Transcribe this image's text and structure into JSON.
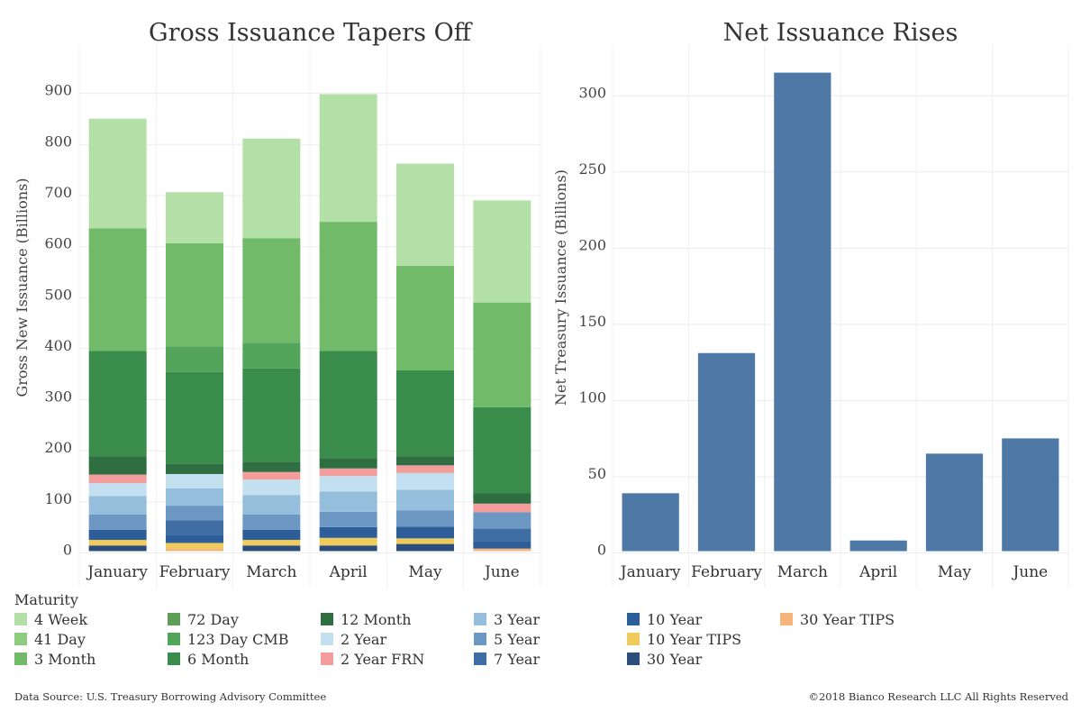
{
  "chart_data": [
    {
      "type": "bar",
      "stacked": true,
      "title": "Gross Issuance Tapers Off",
      "ylabel": "Gross New Issuance (Billions)",
      "xlabel": "",
      "categories": [
        "January",
        "February",
        "March",
        "April",
        "May",
        "June"
      ],
      "ylim": [
        -15,
        970
      ],
      "yticks": [
        0,
        100,
        200,
        300,
        400,
        500,
        600,
        700,
        800,
        900
      ],
      "grid": true,
      "series": [
        {
          "name": "30 Year TIPS",
          "color": "#f5b57a",
          "values": [
            0,
            5,
            0,
            0,
            0,
            5
          ]
        },
        {
          "name": "30 Year",
          "color": "#2c4e7c",
          "values": [
            11,
            0,
            11,
            11,
            14,
            0
          ]
        },
        {
          "name": "10 Year TIPS",
          "color": "#eecb5a",
          "values": [
            11,
            11,
            11,
            15,
            11,
            0
          ]
        },
        {
          "name": "10 Year",
          "color": "#2e5e99",
          "values": [
            20,
            15,
            20,
            21,
            23,
            15
          ]
        },
        {
          "name": "7 Year",
          "color": "#3f6ea5",
          "values": [
            0,
            29,
            0,
            0,
            0,
            24
          ]
        },
        {
          "name": "5 Year",
          "color": "#6e98c4",
          "values": [
            30,
            29,
            30,
            30,
            32,
            32
          ]
        },
        {
          "name": "3 Year",
          "color": "#95bedc",
          "values": [
            36,
            34,
            38,
            40,
            40,
            0
          ]
        },
        {
          "name": "2 Year",
          "color": "#c3e0f1",
          "values": [
            25,
            28,
            30,
            30,
            33,
            0
          ]
        },
        {
          "name": "2 Year FRN",
          "color": "#f49d9d",
          "values": [
            17,
            0,
            15,
            15,
            15,
            17
          ]
        },
        {
          "name": "12 Month",
          "color": "#2e6e40",
          "values": [
            36,
            20,
            20,
            20,
            18,
            20
          ]
        },
        {
          "name": "6 Month",
          "color": "#3a8c4a",
          "values": [
            206,
            180,
            183,
            210,
            168,
            169
          ]
        },
        {
          "name": "123 Day CMB",
          "color": "#52a55b",
          "values": [
            0,
            50,
            50,
            0,
            0,
            0
          ]
        },
        {
          "name": "3 Month",
          "color": "#70ba6a",
          "values": [
            240,
            202,
            205,
            253,
            205,
            205
          ]
        },
        {
          "name": "4 Week",
          "color": "#b3e0a6",
          "values": [
            215,
            100,
            195,
            250,
            200,
            200
          ]
        }
      ]
    },
    {
      "type": "bar",
      "title": "Net Issuance Rises",
      "ylabel": "Net Treasury Issuance (Billions)",
      "xlabel": "",
      "categories": [
        "January",
        "February",
        "March",
        "April",
        "May",
        "June"
      ],
      "values": [
        38,
        130,
        314,
        7,
        64,
        74
      ],
      "color": "#4e79a7",
      "ylim": [
        -5,
        325
      ],
      "yticks": [
        0,
        50,
        100,
        150,
        200,
        250,
        300
      ],
      "grid": true
    }
  ],
  "legend": {
    "title": "Maturity",
    "items": [
      {
        "label": "4 Week",
        "color": "#b3e0a6"
      },
      {
        "label": "41 Day",
        "color": "#8dcb80"
      },
      {
        "label": "3 Month",
        "color": "#70ba6a"
      },
      {
        "label": "72 Day",
        "color": "#5e9e58"
      },
      {
        "label": "123 Day CMB",
        "color": "#52a55b"
      },
      {
        "label": "6 Month",
        "color": "#3a8c4a"
      },
      {
        "label": "12 Month",
        "color": "#2e6e40"
      },
      {
        "label": "2 Year",
        "color": "#c3e0f1"
      },
      {
        "label": "2 Year FRN",
        "color": "#f49d9d"
      },
      {
        "label": "3 Year",
        "color": "#95bedc"
      },
      {
        "label": "5 Year",
        "color": "#6e98c4"
      },
      {
        "label": "7 Year",
        "color": "#3f6ea5"
      },
      {
        "label": "10 Year",
        "color": "#2e5e99"
      },
      {
        "label": "10 Year TIPS",
        "color": "#eecb5a"
      },
      {
        "label": "30 Year",
        "color": "#2c4e7c"
      },
      {
        "label": "30 Year TIPS",
        "color": "#f5b57a"
      }
    ]
  },
  "footer": {
    "source": "Data Source: U.S. Treasury Borrowing Advisory Committee",
    "copyright": "©2018 Bianco Research LLC All Rights Reserved"
  }
}
